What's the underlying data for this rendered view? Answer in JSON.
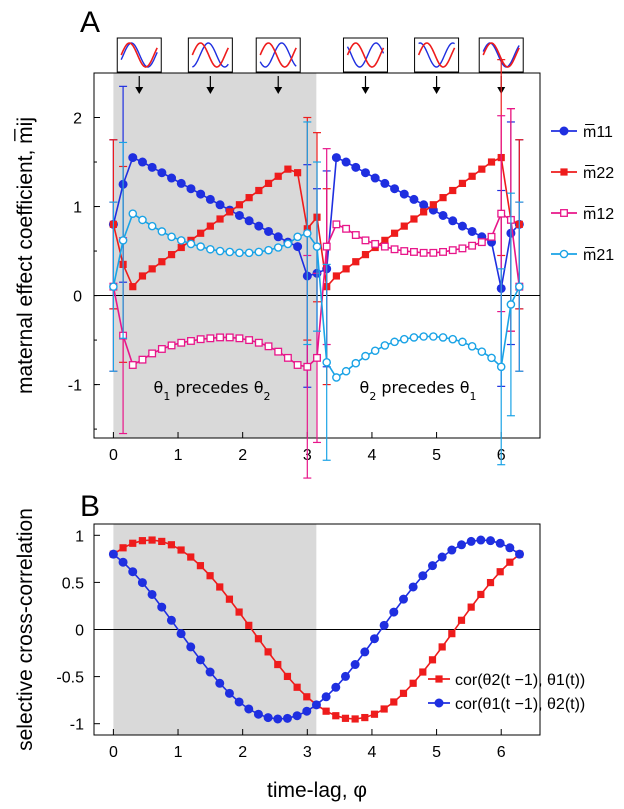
{
  "colors": {
    "m11": "#1f2fe0",
    "m22": "#ee1c1c",
    "m12": "#e8168a",
    "m21": "#1aa3e6",
    "shade": "#d9d9d9"
  },
  "chart_data": [
    {
      "panel": "A",
      "type": "line",
      "ylabel": "maternal effect coefficient, m̅ij",
      "xlabel": "",
      "xlim": [
        -0.3,
        6.6
      ],
      "ylim": [
        -1.6,
        2.5
      ],
      "xticks": [
        "0",
        "1",
        "2",
        "3",
        "4",
        "5",
        "6"
      ],
      "yticks": [
        "-1",
        "0",
        "1",
        "2"
      ],
      "shaded_region": [
        0,
        3.14
      ],
      "annotations": [
        "θ1 precedes θ2",
        "θ2 precedes θ1"
      ],
      "legend": [
        {
          "key": "m11",
          "label": "m̅11",
          "marker": "filled-circle"
        },
        {
          "key": "m22",
          "label": "m̅22",
          "marker": "filled-square"
        },
        {
          "key": "m12",
          "label": "m̅12",
          "marker": "open-square"
        },
        {
          "key": "m21",
          "label": "m̅21",
          "marker": "open-circle"
        }
      ],
      "insets_at_x": [
        0.4,
        1.5,
        2.55,
        3.9,
        5.0,
        6.0
      ],
      "series": [
        {
          "key": "m11",
          "name": "m̅11",
          "x": [
            0,
            0.15,
            0.3,
            0.45,
            0.6,
            0.75,
            0.9,
            1.05,
            1.2,
            1.35,
            1.5,
            1.65,
            1.8,
            1.95,
            2.1,
            2.25,
            2.4,
            2.55,
            2.7,
            2.85,
            3.0,
            3.15,
            3.3,
            3.45,
            3.6,
            3.75,
            3.9,
            4.05,
            4.2,
            4.35,
            4.5,
            4.65,
            4.8,
            4.95,
            5.1,
            5.25,
            5.4,
            5.55,
            5.7,
            5.85,
            6.0,
            6.15,
            6.28
          ],
          "y": [
            0.8,
            1.25,
            1.55,
            1.5,
            1.44,
            1.38,
            1.32,
            1.26,
            1.2,
            1.14,
            1.08,
            1.02,
            0.96,
            0.9,
            0.84,
            0.78,
            0.72,
            0.66,
            0.6,
            0.55,
            0.22,
            0.25,
            0.3,
            1.55,
            1.5,
            1.44,
            1.38,
            1.32,
            1.26,
            1.2,
            1.14,
            1.08,
            1.02,
            0.96,
            0.9,
            0.84,
            0.78,
            0.72,
            0.66,
            0.6,
            0.08,
            0.7,
            0.8
          ]
        },
        {
          "key": "m22",
          "name": "m̅22",
          "x": [
            0,
            0.15,
            0.3,
            0.45,
            0.6,
            0.75,
            0.9,
            1.05,
            1.2,
            1.35,
            1.5,
            1.65,
            1.8,
            1.95,
            2.1,
            2.25,
            2.4,
            2.55,
            2.7,
            2.85,
            3.0,
            3.15,
            3.3,
            3.45,
            3.6,
            3.75,
            3.9,
            4.05,
            4.2,
            4.35,
            4.5,
            4.65,
            4.8,
            4.95,
            5.1,
            5.25,
            5.4,
            5.55,
            5.7,
            5.85,
            6.0,
            6.15,
            6.28
          ],
          "y": [
            0.8,
            0.35,
            0.1,
            0.22,
            0.3,
            0.38,
            0.46,
            0.54,
            0.62,
            0.7,
            0.78,
            0.86,
            0.94,
            1.02,
            1.1,
            1.18,
            1.26,
            1.34,
            1.42,
            1.38,
            0.75,
            0.88,
            0.1,
            0.22,
            0.3,
            0.38,
            0.46,
            0.54,
            0.62,
            0.7,
            0.78,
            0.86,
            0.94,
            1.02,
            1.1,
            1.18,
            1.26,
            1.34,
            1.42,
            1.5,
            1.55,
            0.85,
            0.8
          ]
        },
        {
          "key": "m12",
          "name": "m̅12",
          "x": [
            0,
            0.15,
            0.3,
            0.45,
            0.6,
            0.75,
            0.9,
            1.05,
            1.2,
            1.35,
            1.5,
            1.65,
            1.8,
            1.95,
            2.1,
            2.25,
            2.4,
            2.55,
            2.7,
            2.85,
            3.0,
            3.15,
            3.3,
            3.45,
            3.6,
            3.75,
            3.9,
            4.05,
            4.2,
            4.35,
            4.5,
            4.65,
            4.8,
            4.95,
            5.1,
            5.25,
            5.4,
            5.55,
            5.7,
            5.85,
            6.0,
            6.15,
            6.28
          ],
          "y": [
            0.1,
            -0.45,
            -0.78,
            -0.72,
            -0.65,
            -0.6,
            -0.56,
            -0.53,
            -0.51,
            -0.49,
            -0.48,
            -0.47,
            -0.47,
            -0.48,
            -0.5,
            -0.53,
            -0.57,
            -0.63,
            -0.7,
            -0.78,
            -0.8,
            -0.7,
            0.55,
            0.8,
            0.75,
            0.68,
            0.62,
            0.58,
            0.55,
            0.52,
            0.5,
            0.49,
            0.48,
            0.48,
            0.49,
            0.51,
            0.53,
            0.56,
            0.6,
            0.66,
            0.92,
            0.85,
            0.1
          ]
        },
        {
          "key": "m21",
          "name": "m̅21",
          "x": [
            0,
            0.15,
            0.3,
            0.45,
            0.6,
            0.75,
            0.9,
            1.05,
            1.2,
            1.35,
            1.5,
            1.65,
            1.8,
            1.95,
            2.1,
            2.25,
            2.4,
            2.55,
            2.7,
            2.85,
            3.0,
            3.15,
            3.3,
            3.45,
            3.6,
            3.75,
            3.9,
            4.05,
            4.2,
            4.35,
            4.5,
            4.65,
            4.8,
            4.95,
            5.1,
            5.25,
            5.4,
            5.55,
            5.7,
            5.85,
            6.0,
            6.15,
            6.28
          ],
          "y": [
            0.1,
            0.62,
            0.92,
            0.85,
            0.78,
            0.72,
            0.66,
            0.62,
            0.58,
            0.55,
            0.52,
            0.5,
            0.49,
            0.48,
            0.48,
            0.49,
            0.51,
            0.54,
            0.58,
            0.66,
            0.7,
            0.55,
            -0.75,
            -0.92,
            -0.85,
            -0.76,
            -0.68,
            -0.62,
            -0.56,
            -0.52,
            -0.49,
            -0.47,
            -0.46,
            -0.46,
            -0.47,
            -0.49,
            -0.52,
            -0.57,
            -0.63,
            -0.7,
            -0.8,
            -0.1,
            0.1
          ]
        }
      ]
    },
    {
      "panel": "B",
      "type": "line",
      "ylabel": "selective cross-correlation",
      "xlabel": "time-lag, φ",
      "xlim": [
        -0.3,
        6.6
      ],
      "ylim": [
        -1.12,
        1.12
      ],
      "xticks": [
        "0",
        "1",
        "2",
        "3",
        "4",
        "5",
        "6"
      ],
      "yticks": [
        "-1",
        "-0.5",
        "0",
        "0.5",
        "1"
      ],
      "shaded_region": [
        0,
        3.14
      ],
      "series": [
        {
          "key": "m22",
          "name": "cor(θ2(t −1), θ1(t))",
          "marker": "filled-square",
          "phase": -0.57
        },
        {
          "key": "m11",
          "name": "cor(θ1(t −1), θ2(t))",
          "marker": "filled-circle",
          "phase": 0.57
        }
      ],
      "n_points": 43,
      "amplitude": 0.95
    }
  ]
}
